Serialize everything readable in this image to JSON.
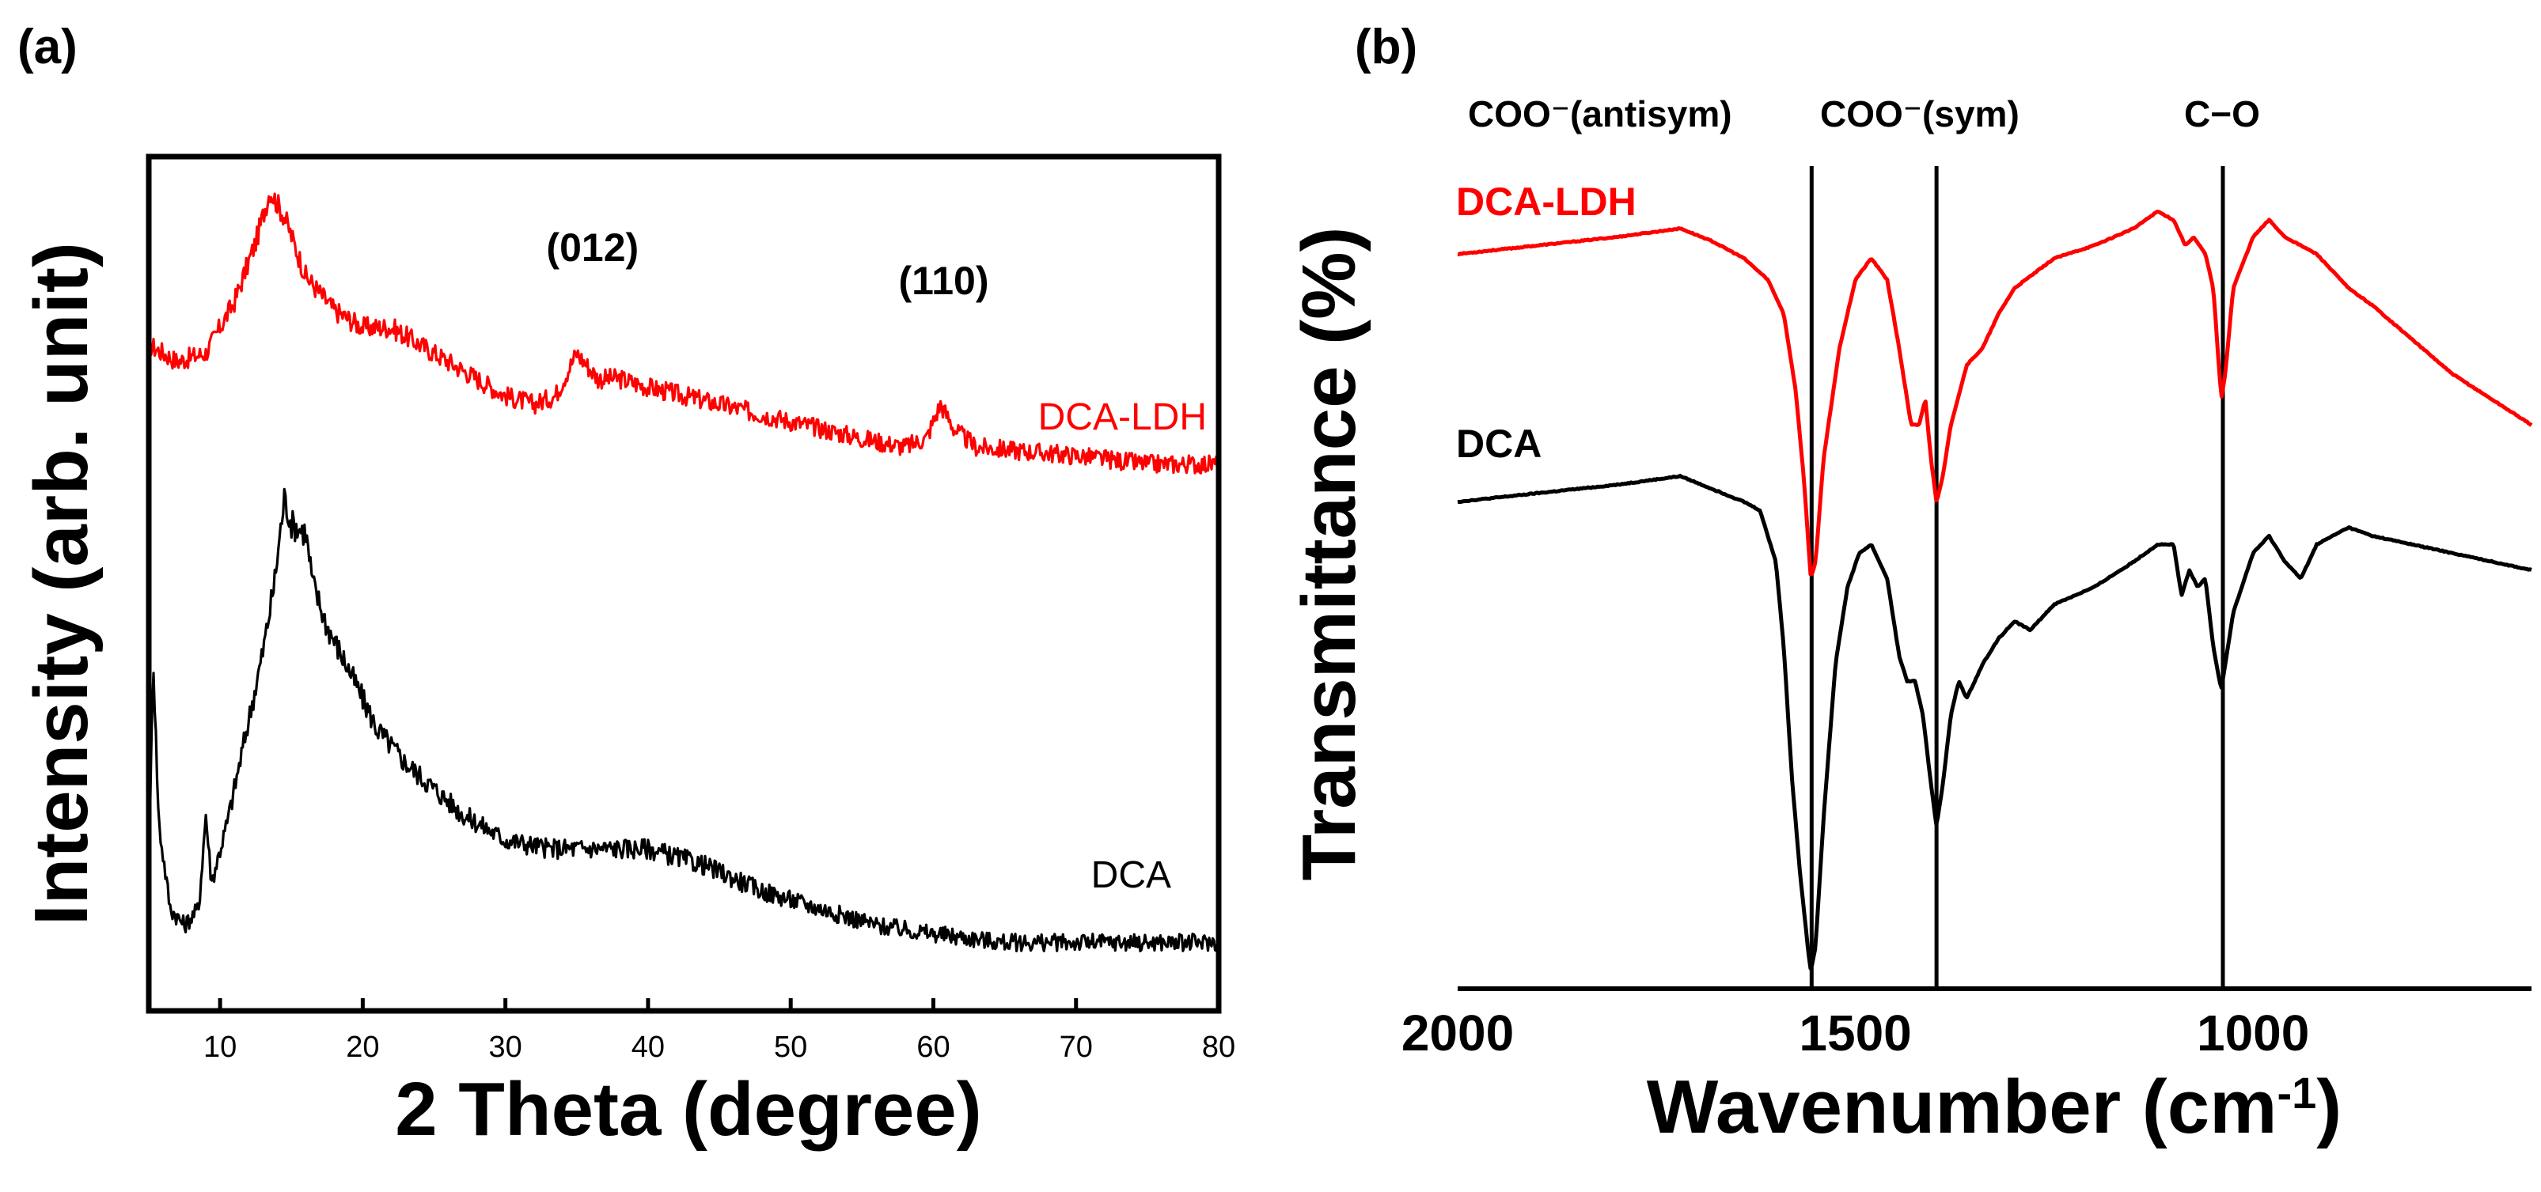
{
  "chart_data": [
    {
      "panel": "(a)",
      "type": "line",
      "xlabel": "2 Theta (degree)",
      "ylabel": "Intensity (arb. unit)",
      "xlim": [
        5,
        80
      ],
      "xticks": [
        10,
        20,
        30,
        40,
        50,
        60,
        70,
        80
      ],
      "yticks_shown": false,
      "annotations": [
        {
          "text": "(012)",
          "x": 35
        },
        {
          "text": "(110)",
          "x": 61
        }
      ],
      "series": [
        {
          "name": "DCA-LDH",
          "color": "#ff0000",
          "noise": 0.35,
          "points": [
            [
              5,
              0.78
            ],
            [
              7,
              0.76
            ],
            [
              9,
              0.77
            ],
            [
              11,
              0.83
            ],
            [
              12.5,
              0.9
            ],
            [
              13.5,
              0.96
            ],
            [
              14.5,
              0.93
            ],
            [
              16,
              0.86
            ],
            [
              18,
              0.82
            ],
            [
              20,
              0.8
            ],
            [
              22,
              0.8
            ],
            [
              24,
              0.78
            ],
            [
              26,
              0.76
            ],
            [
              28,
              0.74
            ],
            [
              30,
              0.72
            ],
            [
              32,
              0.71
            ],
            [
              33.5,
              0.72
            ],
            [
              35,
              0.77
            ],
            [
              36.5,
              0.74
            ],
            [
              38,
              0.74
            ],
            [
              40,
              0.73
            ],
            [
              45,
              0.71
            ],
            [
              50,
              0.69
            ],
            [
              55,
              0.67
            ],
            [
              58,
              0.66
            ],
            [
              59.5,
              0.67
            ],
            [
              60.5,
              0.71
            ],
            [
              61.5,
              0.68
            ],
            [
              63,
              0.66
            ],
            [
              70,
              0.65
            ],
            [
              75,
              0.64
            ],
            [
              80,
              0.64
            ]
          ]
        },
        {
          "name": "DCA",
          "color": "#000000",
          "noise": 0.6,
          "points": [
            [
              5,
              0.14
            ],
            [
              5.3,
              0.42
            ],
            [
              5.7,
              0.22
            ],
            [
              6.5,
              0.12
            ],
            [
              7.5,
              0.1
            ],
            [
              8.5,
              0.12
            ],
            [
              9,
              0.23
            ],
            [
              9.4,
              0.15
            ],
            [
              10.5,
              0.22
            ],
            [
              12,
              0.34
            ],
            [
              13,
              0.42
            ],
            [
              13.8,
              0.5
            ],
            [
              14.5,
              0.6
            ],
            [
              15,
              0.57
            ],
            [
              16,
              0.56
            ],
            [
              16.5,
              0.5
            ],
            [
              17.5,
              0.45
            ],
            [
              19,
              0.4
            ],
            [
              21,
              0.33
            ],
            [
              23,
              0.29
            ],
            [
              25,
              0.26
            ],
            [
              27,
              0.23
            ],
            [
              30,
              0.2
            ],
            [
              33,
              0.19
            ],
            [
              36,
              0.19
            ],
            [
              40,
              0.19
            ],
            [
              44,
              0.17
            ],
            [
              48,
              0.14
            ],
            [
              52,
              0.12
            ],
            [
              56,
              0.1
            ],
            [
              60,
              0.09
            ],
            [
              65,
              0.08
            ],
            [
              70,
              0.08
            ],
            [
              75,
              0.08
            ],
            [
              80,
              0.08
            ]
          ]
        }
      ],
      "legend": [
        {
          "text": "DCA-LDH",
          "color": "#ff0000"
        },
        {
          "text": "DCA",
          "color": "#000000"
        }
      ]
    },
    {
      "panel": "(b)",
      "type": "line",
      "xlabel": "Wavenumber (cm",
      "xlabel_sup": "-1",
      "xlabel_end": ")",
      "ylabel": "Transmittance (%)",
      "xlim": [
        2000,
        650
      ],
      "xticks": [
        2000,
        1500,
        1000
      ],
      "yticks_shown": false,
      "reference_lines": [
        {
          "label": "COO⁻(antisym)",
          "x": 1555
        },
        {
          "label": "COO⁻(sym)",
          "x": 1398
        },
        {
          "label": "C−O",
          "x": 1038
        }
      ],
      "series": [
        {
          "name": "DCA-LDH",
          "color": "#ff0000",
          "noise": 0.06,
          "points": [
            [
              2000,
              0.86
            ],
            [
              1900,
              0.87
            ],
            [
              1800,
              0.88
            ],
            [
              1720,
              0.89
            ],
            [
              1680,
              0.875
            ],
            [
              1640,
              0.855
            ],
            [
              1610,
              0.83
            ],
            [
              1590,
              0.79
            ],
            [
              1575,
              0.7
            ],
            [
              1565,
              0.6
            ],
            [
              1556,
              0.48
            ],
            [
              1550,
              0.5
            ],
            [
              1540,
              0.62
            ],
            [
              1520,
              0.75
            ],
            [
              1500,
              0.83
            ],
            [
              1480,
              0.855
            ],
            [
              1460,
              0.83
            ],
            [
              1445,
              0.75
            ],
            [
              1430,
              0.66
            ],
            [
              1420,
              0.66
            ],
            [
              1412,
              0.69
            ],
            [
              1405,
              0.62
            ],
            [
              1398,
              0.57
            ],
            [
              1390,
              0.6
            ],
            [
              1380,
              0.66
            ],
            [
              1360,
              0.73
            ],
            [
              1340,
              0.75
            ],
            [
              1320,
              0.79
            ],
            [
              1300,
              0.82
            ],
            [
              1250,
              0.855
            ],
            [
              1200,
              0.87
            ],
            [
              1150,
              0.89
            ],
            [
              1120,
              0.91
            ],
            [
              1100,
              0.9
            ],
            [
              1085,
              0.87
            ],
            [
              1075,
              0.88
            ],
            [
              1060,
              0.86
            ],
            [
              1050,
              0.82
            ],
            [
              1040,
              0.69
            ],
            [
              1035,
              0.72
            ],
            [
              1025,
              0.82
            ],
            [
              1000,
              0.88
            ],
            [
              980,
              0.9
            ],
            [
              960,
              0.88
            ],
            [
              940,
              0.87
            ],
            [
              920,
              0.86
            ],
            [
              880,
              0.82
            ],
            [
              850,
              0.8
            ],
            [
              800,
              0.76
            ],
            [
              750,
              0.72
            ],
            [
              700,
              0.69
            ],
            [
              650,
              0.66
            ]
          ]
        },
        {
          "name": "DCA",
          "color": "#000000",
          "noise": 0.06,
          "points": [
            [
              2000,
              0.57
            ],
            [
              1900,
              0.58
            ],
            [
              1800,
              0.59
            ],
            [
              1720,
              0.6
            ],
            [
              1680,
              0.585
            ],
            [
              1640,
              0.57
            ],
            [
              1620,
              0.56
            ],
            [
              1600,
              0.5
            ],
            [
              1590,
              0.4
            ],
            [
              1580,
              0.25
            ],
            [
              1570,
              0.14
            ],
            [
              1560,
              0.05
            ],
            [
              1556,
              0.02
            ],
            [
              1550,
              0.05
            ],
            [
              1540,
              0.2
            ],
            [
              1525,
              0.38
            ],
            [
              1510,
              0.47
            ],
            [
              1495,
              0.51
            ],
            [
              1480,
              0.52
            ],
            [
              1460,
              0.48
            ],
            [
              1445,
              0.39
            ],
            [
              1435,
              0.36
            ],
            [
              1425,
              0.36
            ],
            [
              1415,
              0.32
            ],
            [
              1405,
              0.24
            ],
            [
              1398,
              0.19
            ],
            [
              1390,
              0.24
            ],
            [
              1380,
              0.32
            ],
            [
              1370,
              0.36
            ],
            [
              1360,
              0.34
            ],
            [
              1340,
              0.38
            ],
            [
              1320,
              0.41
            ],
            [
              1300,
              0.43
            ],
            [
              1280,
              0.42
            ],
            [
              1250,
              0.45
            ],
            [
              1200,
              0.47
            ],
            [
              1150,
              0.5
            ],
            [
              1120,
              0.52
            ],
            [
              1100,
              0.52
            ],
            [
              1090,
              0.46
            ],
            [
              1080,
              0.49
            ],
            [
              1070,
              0.47
            ],
            [
              1060,
              0.48
            ],
            [
              1050,
              0.4
            ],
            [
              1040,
              0.35
            ],
            [
              1035,
              0.38
            ],
            [
              1025,
              0.44
            ],
            [
              1000,
              0.51
            ],
            [
              980,
              0.53
            ],
            [
              960,
              0.5
            ],
            [
              940,
              0.48
            ],
            [
              920,
              0.52
            ],
            [
              880,
              0.54
            ],
            [
              850,
              0.53
            ],
            [
              800,
              0.52
            ],
            [
              750,
              0.51
            ],
            [
              700,
              0.5
            ],
            [
              650,
              0.49
            ]
          ]
        }
      ],
      "legend": [
        {
          "text": "DCA-LDH",
          "color": "#ff0000"
        },
        {
          "text": "DCA",
          "color": "#000000"
        }
      ]
    }
  ]
}
